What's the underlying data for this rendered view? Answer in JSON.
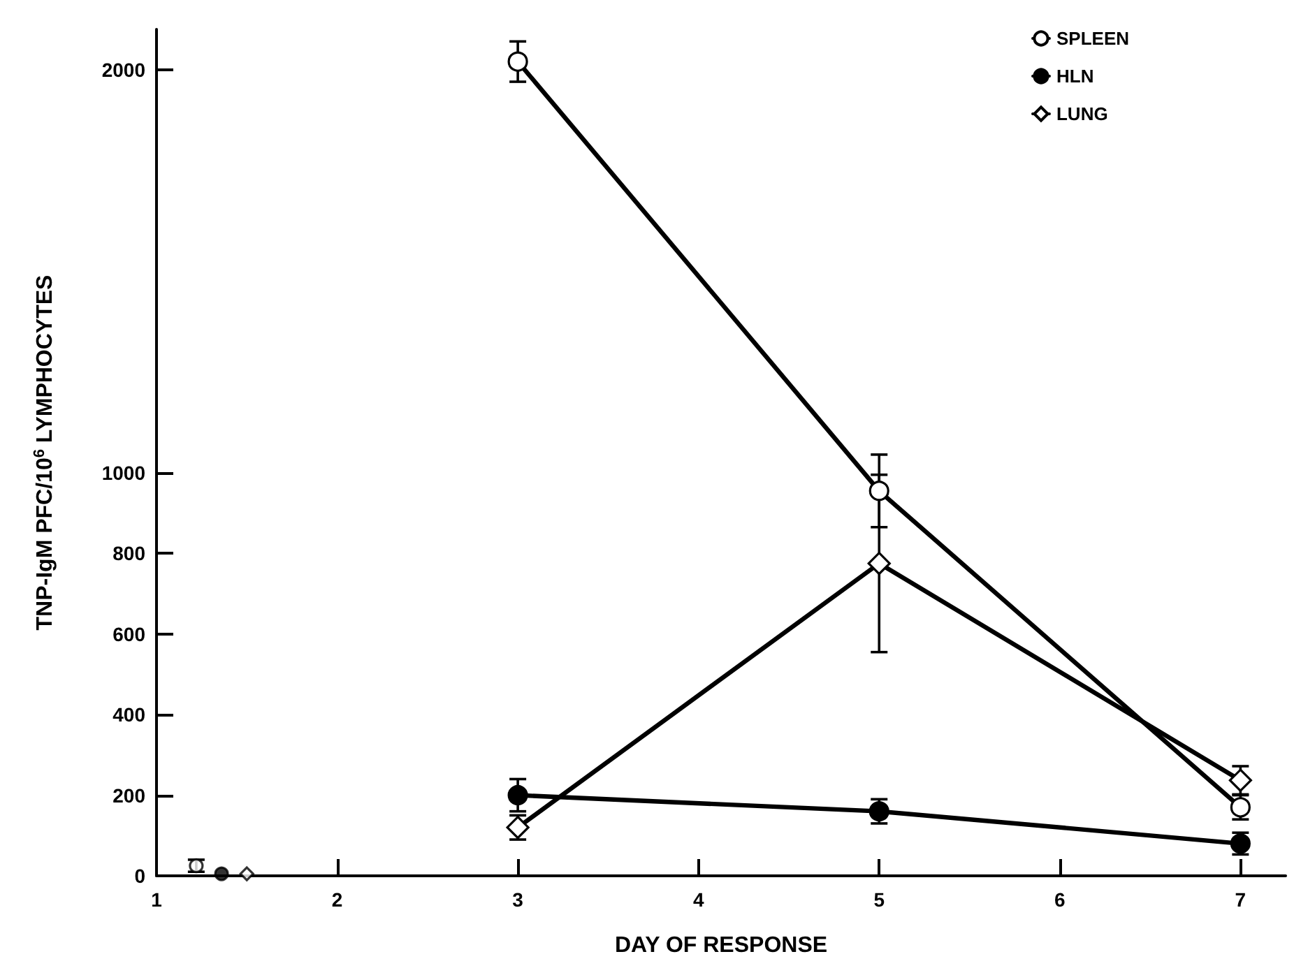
{
  "chart_data": {
    "type": "line",
    "xlabel": "DAY OF RESPONSE",
    "ylabel": "TNP-IgM PFC/10$^{6}$ LYMPHOCYTES",
    "xlim": [
      1,
      7.25
    ],
    "xticks": [
      1,
      2,
      3,
      4,
      5,
      6,
      7
    ],
    "ylim": [
      0,
      2100
    ],
    "yticks": [
      0,
      200,
      400,
      600,
      800,
      1000,
      2000
    ],
    "grid": false,
    "legend": "top right",
    "line_style": "solid",
    "series": [
      {
        "name": "SPLEEN",
        "color": "#000000",
        "colors": [
          "#ffffff",
          "#ffffff",
          "#ffffff"
        ],
        "marker": "circle",
        "x": [
          3,
          5,
          7
        ],
        "values": [
          2020,
          955,
          170
        ],
        "errors": [
          50,
          90,
          30
        ]
      },
      {
        "name": "HLN",
        "color": "#000000",
        "colors": [
          "#000000",
          "#000000",
          "#000000"
        ],
        "marker": "circle",
        "x": [
          3,
          5,
          7
        ],
        "values": [
          200,
          160,
          80
        ],
        "errors": [
          40,
          30,
          27
        ]
      },
      {
        "name": "LUNG",
        "color": "#000000",
        "colors": [
          "#ffffff",
          "#ffffff",
          "#ffffff"
        ],
        "marker": "diamond",
        "x": [
          3,
          5,
          7
        ],
        "values": [
          120,
          775,
          237
        ],
        "errors": [
          30,
          220,
          35
        ]
      },
      {
        "type": "scatter",
        "color": "#000000",
        "colors": [
          "#ffffff"
        ],
        "marker": "circle",
        "x": [
          1.22
        ],
        "values": [
          25
        ],
        "errors": [
          15
        ]
      },
      {
        "type": "scatter",
        "color": "#000000",
        "colors": [
          "#000000"
        ],
        "marker": "circle",
        "x": [
          1.36
        ],
        "values": [
          5
        ]
      },
      {
        "type": "scatter",
        "color": "#000000",
        "colors": [
          "#ffffff"
        ],
        "marker": "diamond",
        "x": [
          1.5
        ],
        "values": [
          5
        ]
      }
    ]
  }
}
